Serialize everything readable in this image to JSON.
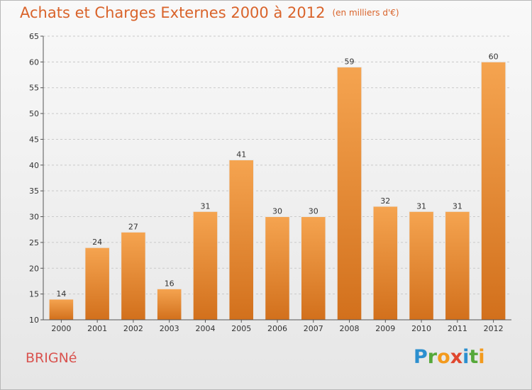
{
  "header": {
    "title": "Achats et Charges Externes 2000 à 2012",
    "unit": "(en milliers d'€)"
  },
  "footer": {
    "place": "BRIGNé",
    "logo_letters": [
      "P",
      "r",
      "o",
      "x",
      "i",
      "t",
      "i"
    ]
  },
  "colors": {
    "bar_light": "#f5a450",
    "bar_dark": "#d2701c",
    "title": "#d9632a",
    "place": "#d9534f"
  },
  "chart_data": {
    "type": "bar",
    "title": "Achats et Charges Externes 2000 à 2012",
    "subtitle": "(en milliers d'€)",
    "categories": [
      "2000",
      "2001",
      "2002",
      "2003",
      "2004",
      "2005",
      "2006",
      "2007",
      "2008",
      "2009",
      "2010",
      "2011",
      "2012"
    ],
    "values": [
      14,
      24,
      27,
      16,
      31,
      41,
      30,
      30,
      59,
      32,
      31,
      31,
      60
    ],
    "ylim": [
      10,
      65
    ],
    "yticks": [
      10,
      15,
      20,
      25,
      30,
      35,
      40,
      45,
      50,
      55,
      60,
      65
    ],
    "grid": "horizontal-dashed",
    "legend": "none"
  }
}
